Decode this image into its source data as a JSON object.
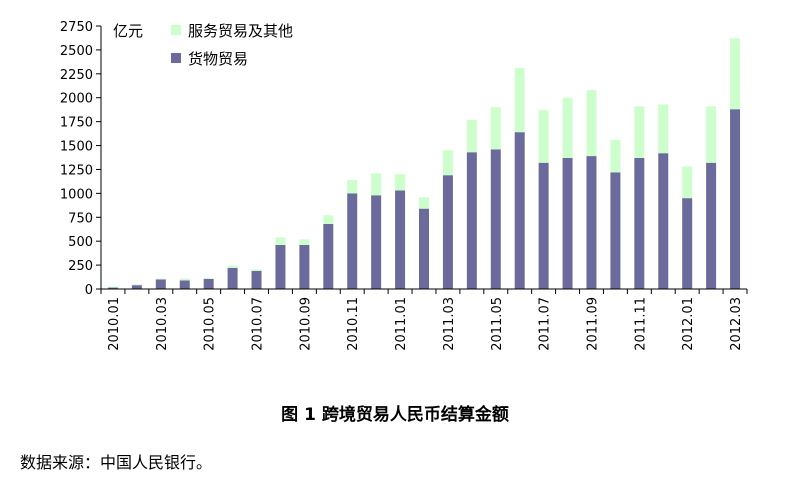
{
  "chart_data": {
    "type": "bar",
    "stacked": true,
    "unit_label": "亿元",
    "categories": [
      "2010.01",
      "2010.02",
      "2010.03",
      "2010.04",
      "2010.05",
      "2010.06",
      "2010.07",
      "2010.08",
      "2010.09",
      "2010.10",
      "2010.11",
      "2010.12",
      "2011.01",
      "2011.02",
      "2011.03",
      "2011.04",
      "2011.05",
      "2011.06",
      "2011.07",
      "2011.08",
      "2011.09",
      "2011.10",
      "2011.11",
      "2011.12",
      "2012.01",
      "2012.02",
      "2012.03"
    ],
    "x_tick_labels": [
      "2010.01",
      "2010.03",
      "2010.05",
      "2010.07",
      "2010.09",
      "2010.11",
      "2011.01",
      "2011.03",
      "2011.05",
      "2011.07",
      "2011.09",
      "2011.11",
      "2012.01",
      "2012.03"
    ],
    "series": [
      {
        "name": "货物贸易",
        "color": "#6b6a9d",
        "values": [
          15,
          40,
          100,
          90,
          105,
          220,
          190,
          460,
          460,
          680,
          1000,
          980,
          1030,
          840,
          1190,
          1430,
          1460,
          1640,
          1320,
          1370,
          1390,
          1220,
          1370,
          1420,
          950,
          1320,
          1880
        ]
      },
      {
        "name": "服务贸易及其他",
        "color": "#ccffcc",
        "values": [
          10,
          10,
          10,
          20,
          10,
          25,
          15,
          80,
          60,
          90,
          140,
          230,
          170,
          120,
          260,
          340,
          440,
          670,
          550,
          630,
          690,
          340,
          540,
          510,
          330,
          590,
          740
        ]
      }
    ],
    "ylim": [
      0,
      2750
    ],
    "yticks": [
      0,
      250,
      500,
      750,
      1000,
      1250,
      1500,
      1750,
      2000,
      2250,
      2500,
      2750
    ],
    "legend_position": "top-left",
    "grid": false
  },
  "caption": "图 1 跨境贸易人民币结算金额",
  "source": "数据来源：中国人民银行。"
}
